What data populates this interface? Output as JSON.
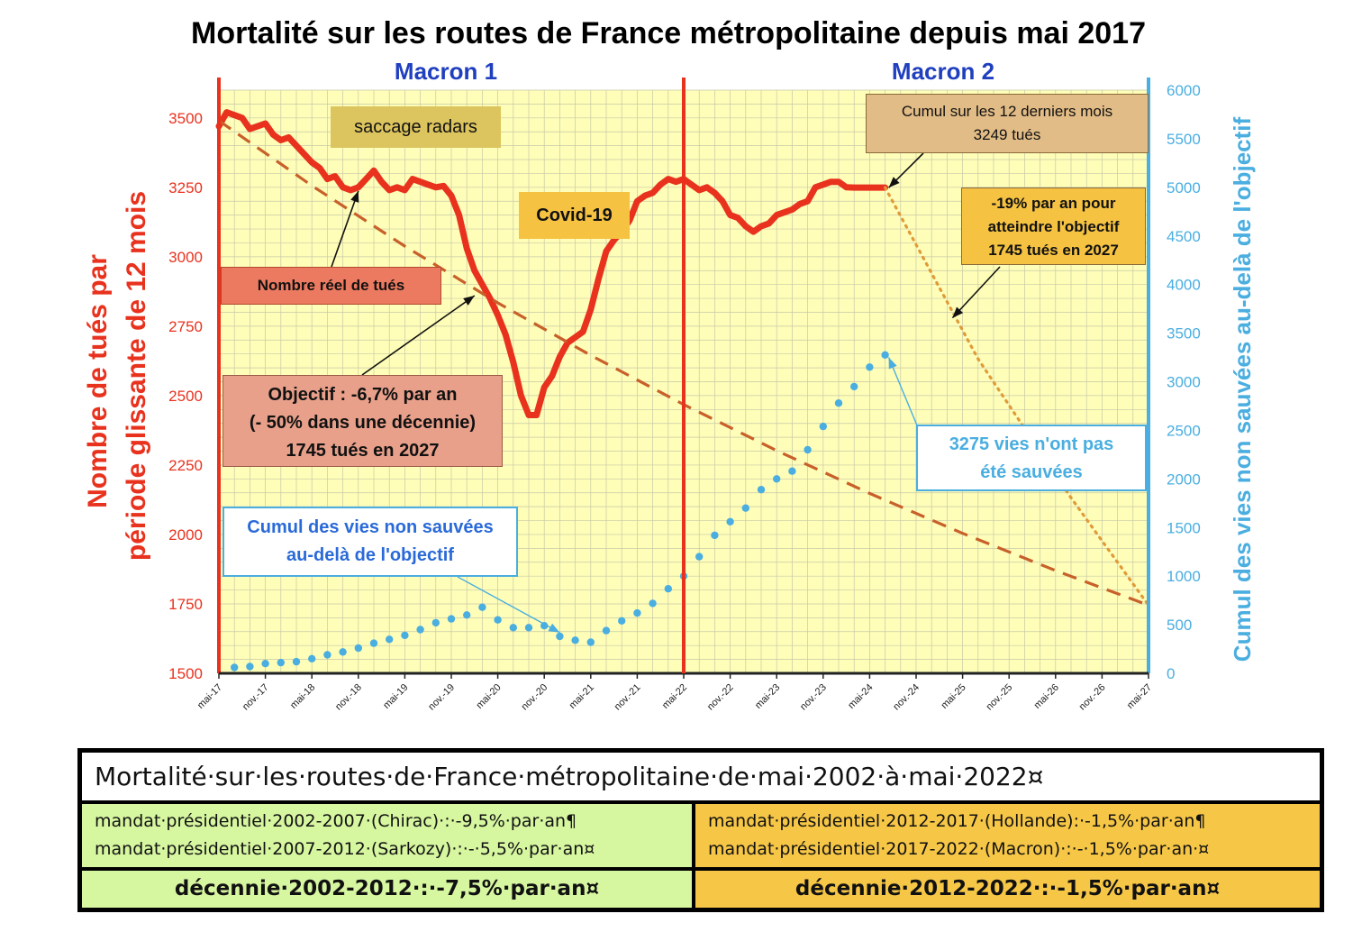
{
  "chart_data": {
    "type": "line",
    "title": "Mortalité sur les routes de France métropolitaine depuis mai 2017",
    "ylabel_left": "Nombre de tués par période glissante de 12 mois",
    "ylabel_right": "Cumul des vies non sauvées au-delà de l'objectif",
    "ylim_left": [
      1500,
      3600
    ],
    "ylim_right": [
      0,
      6000
    ],
    "yticks_left": [
      1500,
      1750,
      2000,
      2250,
      2500,
      2750,
      3000,
      3250,
      3500
    ],
    "yticks_right": [
      0,
      500,
      1000,
      1500,
      2000,
      2500,
      3000,
      3500,
      4000,
      4500,
      5000,
      5500,
      6000
    ],
    "x_range": [
      "2017-05",
      "2027-05"
    ],
    "xticks": [
      "mai-17",
      "nov.-17",
      "mai-18",
      "nov.-18",
      "mai-19",
      "nov.-19",
      "mai-20",
      "nov.-20",
      "mai-21",
      "nov.-21",
      "mai-22",
      "nov.-22",
      "mai-23",
      "nov.-23",
      "mai-24",
      "nov.-24",
      "mai-25",
      "nov.-25",
      "mai-26",
      "nov.-26",
      "mai-27"
    ],
    "grid": true,
    "periods": [
      {
        "label": "Macron 1",
        "start": "2017-05",
        "end": "2022-05"
      },
      {
        "label": "Macron 2",
        "start": "2022-05",
        "end": "2027-05"
      }
    ],
    "series": [
      {
        "name": "Nombre réel de tués",
        "axis": "left",
        "color": "#e8321e",
        "style": "solid",
        "x": [
          "2017-05",
          "2017-06",
          "2017-07",
          "2017-08",
          "2017-09",
          "2017-10",
          "2017-11",
          "2017-12",
          "2018-01",
          "2018-02",
          "2018-03",
          "2018-04",
          "2018-05",
          "2018-06",
          "2018-07",
          "2018-08",
          "2018-09",
          "2018-10",
          "2018-11",
          "2018-12",
          "2019-01",
          "2019-02",
          "2019-03",
          "2019-04",
          "2019-05",
          "2019-06",
          "2019-07",
          "2019-08",
          "2019-09",
          "2019-10",
          "2019-11",
          "2019-12",
          "2020-01",
          "2020-02",
          "2020-03",
          "2020-04",
          "2020-05",
          "2020-06",
          "2020-07",
          "2020-08",
          "2020-09",
          "2020-10",
          "2020-11",
          "2020-12",
          "2021-01",
          "2021-02",
          "2021-03",
          "2021-04",
          "2021-05",
          "2021-06",
          "2021-07",
          "2021-08",
          "2021-09",
          "2021-10",
          "2021-11",
          "2021-12",
          "2022-01",
          "2022-02",
          "2022-03",
          "2022-04",
          "2022-05",
          "2022-06",
          "2022-07",
          "2022-08",
          "2022-09",
          "2022-10",
          "2022-11",
          "2022-12",
          "2023-01",
          "2023-02",
          "2023-03",
          "2023-04",
          "2023-05",
          "2023-06",
          "2023-07",
          "2023-08",
          "2023-09",
          "2023-10",
          "2023-11",
          "2023-12",
          "2024-01",
          "2024-02",
          "2024-03",
          "2024-04",
          "2024-05",
          "2024-06",
          "2024-07"
        ],
        "values": [
          3470,
          3520,
          3510,
          3500,
          3460,
          3470,
          3480,
          3440,
          3420,
          3430,
          3400,
          3370,
          3340,
          3320,
          3280,
          3290,
          3250,
          3240,
          3250,
          3280,
          3310,
          3270,
          3240,
          3250,
          3240,
          3280,
          3270,
          3260,
          3250,
          3255,
          3220,
          3150,
          3030,
          2950,
          2900,
          2850,
          2790,
          2720,
          2620,
          2500,
          2430,
          2430,
          2530,
          2570,
          2640,
          2690,
          2710,
          2730,
          2810,
          2920,
          3020,
          3060,
          3090,
          3130,
          3200,
          3220,
          3230,
          3260,
          3280,
          3270,
          3280,
          3260,
          3240,
          3250,
          3230,
          3200,
          3150,
          3140,
          3110,
          3090,
          3110,
          3120,
          3150,
          3160,
          3170,
          3190,
          3200,
          3250,
          3260,
          3270,
          3270,
          3250,
          3249,
          3249,
          3249,
          3249,
          3249
        ]
      },
      {
        "name": "Objectif : -6,7% par an",
        "axis": "left",
        "color": "#c8602a",
        "style": "dashed",
        "x": [
          "2017-05",
          "2018-05",
          "2019-05",
          "2020-05",
          "2021-05",
          "2022-05",
          "2023-05",
          "2024-05",
          "2025-05",
          "2026-05",
          "2027-05"
        ],
        "values": [
          3490,
          3256,
          3038,
          2834,
          2645,
          2468,
          2302,
          2148,
          2004,
          1870,
          1745
        ]
      },
      {
        "name": "-19% par an pour atteindre l'objectif",
        "axis": "left",
        "color": "#e09a3a",
        "style": "dotted",
        "x": [
          "2024-07",
          "2025-07",
          "2026-07",
          "2027-05"
        ],
        "values": [
          3249,
          2632,
          2132,
          1745
        ]
      },
      {
        "name": "Cumul des vies non sauvées au-delà de l'objectif",
        "axis": "right",
        "color": "#4aaee0",
        "style": "dots",
        "x": [
          "2017-07",
          "2017-09",
          "2017-11",
          "2018-01",
          "2018-03",
          "2018-05",
          "2018-07",
          "2018-09",
          "2018-11",
          "2019-01",
          "2019-03",
          "2019-05",
          "2019-07",
          "2019-09",
          "2019-11",
          "2020-01",
          "2020-03",
          "2020-05",
          "2020-07",
          "2020-09",
          "2020-11",
          "2021-01",
          "2021-03",
          "2021-05",
          "2021-07",
          "2021-09",
          "2021-11",
          "2022-01",
          "2022-03",
          "2022-05",
          "2022-07",
          "2022-09",
          "2022-11",
          "2023-01",
          "2023-03",
          "2023-05",
          "2023-07",
          "2023-09",
          "2023-11",
          "2024-01",
          "2024-03",
          "2024-05",
          "2024-07"
        ],
        "values": [
          60,
          70,
          100,
          110,
          120,
          150,
          190,
          220,
          260,
          310,
          350,
          390,
          450,
          520,
          560,
          600,
          680,
          550,
          470,
          470,
          490,
          380,
          340,
          320,
          440,
          540,
          620,
          720,
          870,
          1000,
          1200,
          1420,
          1560,
          1700,
          1890,
          2000,
          2080,
          2300,
          2540,
          2780,
          2950,
          3150,
          3275
        ]
      }
    ],
    "annotations": {
      "radars": "saccage radars",
      "covid": "Covid-19",
      "reel": "Nombre réel de tués",
      "cumul12_l1": "Cumul sur les 12 derniers mois",
      "cumul12_l2": "3249 tués",
      "rate_l1": "-19% par an pour",
      "rate_l2": "atteindre l'objectif",
      "rate_l3": "1745 tués en 2027",
      "objectif_l1": "Objectif : -6,7% par an",
      "objectif_l2": "(- 50% dans une décennie)",
      "objectif_l3": "1745 tués en 2027",
      "cumul_box_l1": "Cumul des vies non sauvées",
      "cumul_box_l2": "au-delà de l'objectif",
      "vies_l1": "3275 vies n'ont pas",
      "vies_l2": "été sauvées"
    }
  },
  "colors": {
    "plot_bg": "#fefeb8",
    "left_axis": "#e8321e",
    "right_axis": "#4aaee0",
    "period_label": "#1f3fbf",
    "note_radars": "#dcc45e",
    "note_covid": "#f5c242",
    "note_reel": "#ec7a60",
    "note_objectif": "#e8a08a",
    "note_cumul12": "#e2bc86",
    "note_rate": "#f5c242",
    "table_green": "#d6f6a0",
    "table_orange": "#f6c646"
  },
  "table": {
    "title": "Mortalité·sur·les·routes·de·France·métropolitaine·de·mai·2002·à·mai·2022¤",
    "left_l1": "mandat·présidentiel·2002-2007·(Chirac)·:·-9,5%·par·an¶",
    "left_l2": "mandat·présidentiel·2007-2012·(Sarkozy)·:·-·5,5%·par·an¤",
    "right_l1": "mandat·présidentiel·2012-2017·(Hollande):·-1,5%·par·an¶",
    "right_l2": "mandat·présidentiel·2017-2022·(Macron)·:·-·1,5%·par·an·¤",
    "left_decade": "décennie·2002-2012·:·-7,5%·par·an¤",
    "right_decade": "décennie·2012-2022·:·-1,5%·par·an¤"
  }
}
